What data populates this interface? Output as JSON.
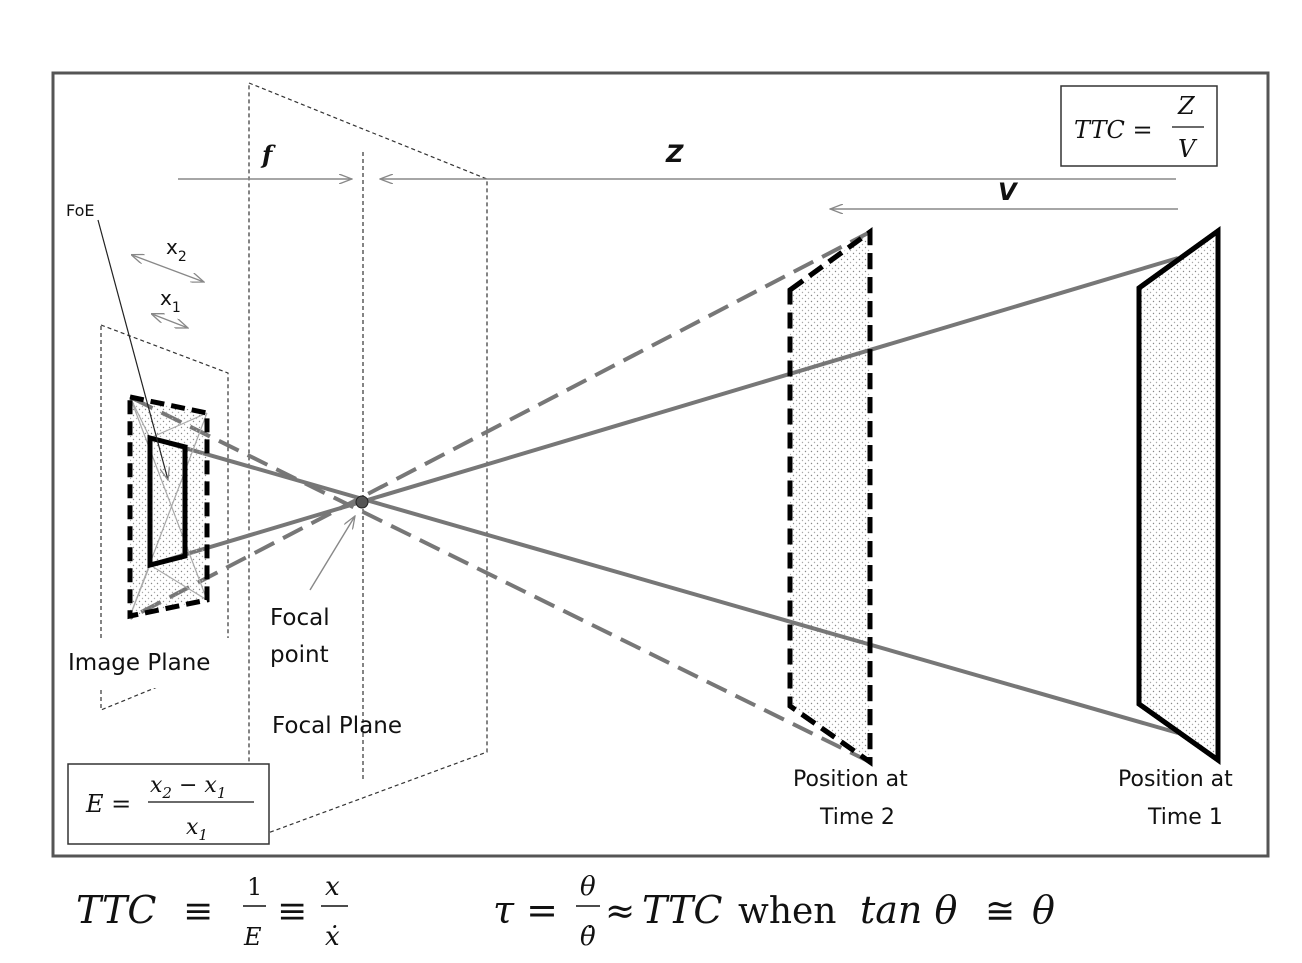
{
  "labels": {
    "f": "f",
    "z": "Z",
    "v": "V",
    "foe": "FoE",
    "x2": "x",
    "x2_sub": "2",
    "x1": "x",
    "x1_sub": "1",
    "focal_point_line1": "Focal",
    "focal_point_line2": "point",
    "image_plane": "Image Plane",
    "focal_plane": "Focal Plane",
    "position_time2_line1": "Position at",
    "position_time2_line2": "Time 2",
    "position_time1_line1": "Position at",
    "position_time1_line2": "Time 1"
  },
  "formulas": {
    "ttc_box": {
      "lhs": "TTC =",
      "num": "Z",
      "den": "V"
    },
    "expansion_box": {
      "lhs": "E =",
      "num_a": "x",
      "num_a_sub": "2",
      "num_op": " − ",
      "num_b": "x",
      "num_b_sub": "1",
      "den": "x",
      "den_sub": "1"
    },
    "ttc_equiv": {
      "lhs": "TTC",
      "equiv1": "≡",
      "frac1_num": "1",
      "frac1_den": "E",
      "equiv2": "≡",
      "frac2_num": "x",
      "frac2_den": "ẋ"
    },
    "tau": {
      "lhs": "τ =",
      "num": "θ",
      "den": "θ̇",
      "approx": "≈",
      "ttc": "TTC",
      "when": "when",
      "tan": "tan θ",
      "cong": "≅",
      "theta": "θ"
    }
  },
  "colors": {
    "frame": "#555555",
    "dashed_plane": "#333333",
    "ray": "#777777",
    "object_edge": "#000000",
    "arrow": "#888888"
  }
}
